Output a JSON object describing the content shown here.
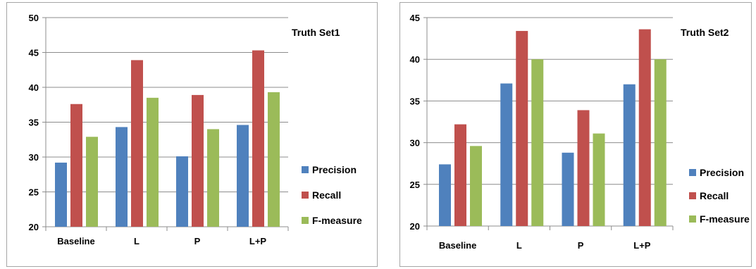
{
  "series_colors": {
    "Precision": "#4f81bd",
    "Recall": "#c0504d",
    "F-measure": "#9bbb59"
  },
  "chart_data": [
    {
      "type": "bar",
      "title": "Truth Set1",
      "categories": [
        "Baseline",
        "L",
        "P",
        "L+P"
      ],
      "series": [
        {
          "name": "Precision",
          "values": [
            29.2,
            34.3,
            30.1,
            34.6
          ]
        },
        {
          "name": "Recall",
          "values": [
            37.6,
            43.9,
            38.9,
            45.3
          ]
        },
        {
          "name": "F-measure",
          "values": [
            32.9,
            38.5,
            34.0,
            39.3
          ]
        }
      ],
      "ylim": [
        20,
        50
      ],
      "yticks": [
        20,
        25,
        30,
        35,
        40,
        45,
        50
      ],
      "grid": true,
      "legend": "right"
    },
    {
      "type": "bar",
      "title": "Truth Set2",
      "categories": [
        "Baseline",
        "L",
        "P",
        "L+P"
      ],
      "series": [
        {
          "name": "Precision",
          "values": [
            27.4,
            37.1,
            28.8,
            37.0
          ]
        },
        {
          "name": "Recall",
          "values": [
            32.2,
            43.4,
            33.9,
            43.6
          ]
        },
        {
          "name": "F-measure",
          "values": [
            29.6,
            40.0,
            31.1,
            40.0
          ]
        }
      ],
      "ylim": [
        20,
        45
      ],
      "yticks": [
        20,
        25,
        30,
        35,
        40,
        45
      ],
      "grid": true,
      "legend": "right"
    }
  ]
}
